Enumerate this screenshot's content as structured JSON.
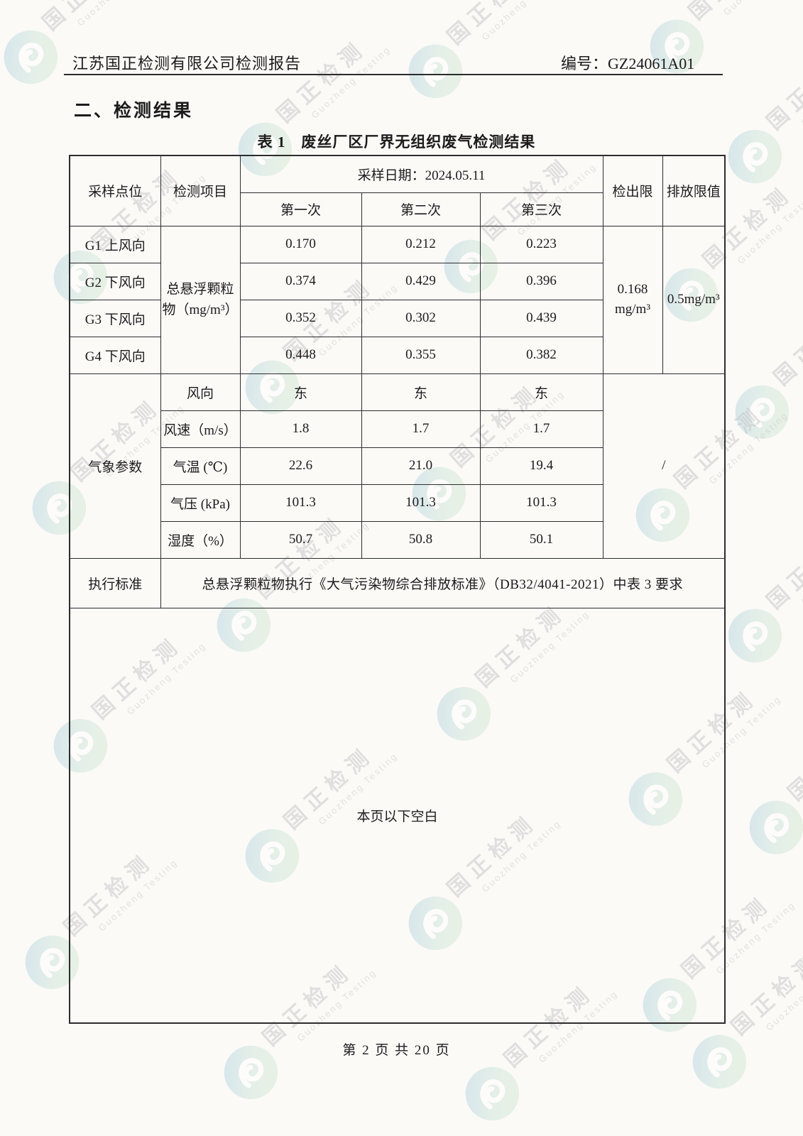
{
  "header": {
    "company_title": "江苏国正检测有限公司检测报告",
    "report_no_label": "编号：",
    "report_no": "GZ24061A01"
  },
  "section_title": "二、检测结果",
  "table_title": "表 1　废丝厂区厂界无组织废气检测结果",
  "watermark": {
    "cn": "国正检测",
    "en": "Guozheng Testing",
    "logo_color_start": "#aecfe4",
    "logo_color_end": "#cde4cd"
  },
  "table": {
    "headers": {
      "sampling_point": "采样点位",
      "test_item": "检测项目",
      "sampling_date": "采样日期：2024.05.11",
      "first": "第一次",
      "second": "第二次",
      "third": "第三次",
      "detection_limit": "检出限",
      "emission_limit": "排放限值"
    },
    "tsp_item": "总悬浮颗粒物（mg/m³）",
    "tsp_rows": [
      {
        "point": "G1 上风向",
        "v1": "0.170",
        "v2": "0.212",
        "v3": "0.223"
      },
      {
        "point": "G2 下风向",
        "v1": "0.374",
        "v2": "0.429",
        "v3": "0.396"
      },
      {
        "point": "G3 下风向",
        "v1": "0.352",
        "v2": "0.302",
        "v3": "0.439"
      },
      {
        "point": "G4 下风向",
        "v1": "0.448",
        "v2": "0.355",
        "v3": "0.382"
      }
    ],
    "detection_limit_line1": "0.168",
    "detection_limit_line2": "mg/m³",
    "emission_limit_value": "0.5mg/m³",
    "weather_label": "气象参数",
    "weather_rows": [
      {
        "param": "风向",
        "v1": "东",
        "v2": "东",
        "v3": "东"
      },
      {
        "param": "风速（m/s）",
        "v1": "1.8",
        "v2": "1.7",
        "v3": "1.7"
      },
      {
        "param": "气温 (℃)",
        "v1": "22.6",
        "v2": "21.0",
        "v3": "19.4"
      },
      {
        "param": "气压 (kPa)",
        "v1": "101.3",
        "v2": "101.3",
        "v3": "101.3"
      },
      {
        "param": "湿度（%）",
        "v1": "50.7",
        "v2": "50.8",
        "v3": "50.1"
      }
    ],
    "weather_limit": "/",
    "standard_label": "执行标准",
    "standard_text": "总悬浮颗粒物执行《大气污染物综合排放标准》（DB32/4041-2021）中表 3 要求",
    "blank_note": "本页以下空白"
  },
  "footer": {
    "page_text": "第 2 页 共 20 页"
  }
}
